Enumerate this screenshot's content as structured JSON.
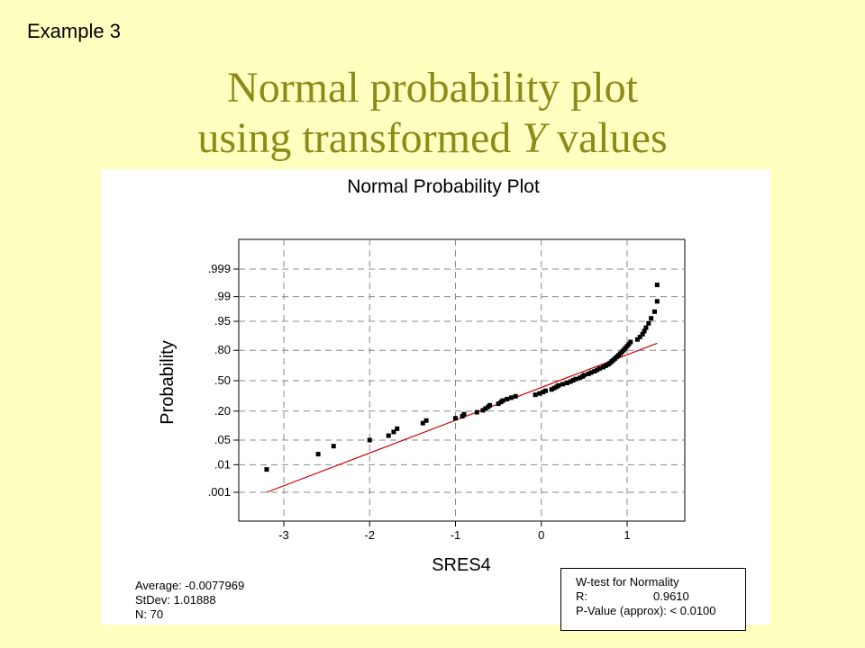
{
  "slide": {
    "example_label": "Example 3",
    "title_line1": "Normal probability plot",
    "title_line2_prefix": "using transformed ",
    "title_line2_italic": "Y",
    "title_line2_suffix": " values"
  },
  "stats": {
    "average": "Average: -0.0077969",
    "stdev": "StDev: 1.01888",
    "n": "N: 70"
  },
  "wtest": {
    "title": "W-test for Normality",
    "r_label": "R:",
    "r_value": "0.9610",
    "p_label": "P-Value (approx):",
    "p_value": "< 0.0100"
  },
  "colors": {
    "background": "#ffffc0",
    "title": "#8b8b1a",
    "fit_line": "#cc0000",
    "points": "#000000",
    "grid": "#888888"
  },
  "chart_data": {
    "type": "scatter",
    "title": "Normal Probability Plot",
    "xlabel": "SRES4",
    "ylabel": "Probability",
    "xlim": [
      -3.5,
      1.65
    ],
    "x_ticks": [
      -3,
      -2,
      -1,
      0,
      1
    ],
    "x_tick_labels": [
      "-3",
      "-2",
      "-1",
      "0",
      "1"
    ],
    "y_scale": "normal-probability",
    "y_ticks": [
      0.001,
      0.01,
      0.05,
      0.2,
      0.5,
      0.8,
      0.95,
      0.99,
      0.999
    ],
    "y_tick_labels": [
      ".001",
      ".01",
      ".05",
      ".20",
      ".50",
      ".80",
      ".95",
      ".99",
      ".999"
    ],
    "grid": true,
    "fit_line": {
      "x_start": -3.2,
      "p_start": 0.001,
      "x_end": 1.35,
      "p_end": 0.85
    },
    "points": [
      {
        "x": -3.2,
        "p": 0.007
      },
      {
        "x": -2.6,
        "p": 0.021
      },
      {
        "x": -2.42,
        "p": 0.035
      },
      {
        "x": -2.0,
        "p": 0.05
      },
      {
        "x": -1.78,
        "p": 0.064
      },
      {
        "x": -1.72,
        "p": 0.078
      },
      {
        "x": -1.68,
        "p": 0.092
      },
      {
        "x": -1.38,
        "p": 0.12
      },
      {
        "x": -1.34,
        "p": 0.135
      },
      {
        "x": -1.0,
        "p": 0.149
      },
      {
        "x": -0.92,
        "p": 0.163
      },
      {
        "x": -0.9,
        "p": 0.177
      },
      {
        "x": -0.75,
        "p": 0.191
      },
      {
        "x": -0.68,
        "p": 0.206
      },
      {
        "x": -0.65,
        "p": 0.22
      },
      {
        "x": -0.62,
        "p": 0.234
      },
      {
        "x": -0.6,
        "p": 0.248
      },
      {
        "x": -0.5,
        "p": 0.262
      },
      {
        "x": -0.47,
        "p": 0.277
      },
      {
        "x": -0.45,
        "p": 0.291
      },
      {
        "x": -0.4,
        "p": 0.305
      },
      {
        "x": -0.35,
        "p": 0.319
      },
      {
        "x": -0.3,
        "p": 0.333
      },
      {
        "x": -0.07,
        "p": 0.348
      },
      {
        "x": -0.02,
        "p": 0.362
      },
      {
        "x": 0.02,
        "p": 0.376
      },
      {
        "x": 0.05,
        "p": 0.39
      },
      {
        "x": 0.12,
        "p": 0.404
      },
      {
        "x": 0.15,
        "p": 0.419
      },
      {
        "x": 0.18,
        "p": 0.433
      },
      {
        "x": 0.2,
        "p": 0.447
      },
      {
        "x": 0.25,
        "p": 0.461
      },
      {
        "x": 0.3,
        "p": 0.475
      },
      {
        "x": 0.34,
        "p": 0.49
      },
      {
        "x": 0.37,
        "p": 0.504
      },
      {
        "x": 0.4,
        "p": 0.518
      },
      {
        "x": 0.45,
        "p": 0.532
      },
      {
        "x": 0.48,
        "p": 0.546
      },
      {
        "x": 0.5,
        "p": 0.561
      },
      {
        "x": 0.55,
        "p": 0.575
      },
      {
        "x": 0.58,
        "p": 0.589
      },
      {
        "x": 0.62,
        "p": 0.603
      },
      {
        "x": 0.65,
        "p": 0.617
      },
      {
        "x": 0.68,
        "p": 0.632
      },
      {
        "x": 0.72,
        "p": 0.646
      },
      {
        "x": 0.75,
        "p": 0.66
      },
      {
        "x": 0.78,
        "p": 0.674
      },
      {
        "x": 0.8,
        "p": 0.688
      },
      {
        "x": 0.82,
        "p": 0.703
      },
      {
        "x": 0.84,
        "p": 0.717
      },
      {
        "x": 0.86,
        "p": 0.731
      },
      {
        "x": 0.88,
        "p": 0.745
      },
      {
        "x": 0.9,
        "p": 0.759
      },
      {
        "x": 0.92,
        "p": 0.773
      },
      {
        "x": 0.94,
        "p": 0.788
      },
      {
        "x": 0.96,
        "p": 0.802
      },
      {
        "x": 0.98,
        "p": 0.816
      },
      {
        "x": 1.0,
        "p": 0.83
      },
      {
        "x": 1.02,
        "p": 0.844
      },
      {
        "x": 1.04,
        "p": 0.858
      },
      {
        "x": 1.12,
        "p": 0.873
      },
      {
        "x": 1.15,
        "p": 0.887
      },
      {
        "x": 1.18,
        "p": 0.901
      },
      {
        "x": 1.2,
        "p": 0.915
      },
      {
        "x": 1.22,
        "p": 0.929
      },
      {
        "x": 1.25,
        "p": 0.944
      },
      {
        "x": 1.28,
        "p": 0.958
      },
      {
        "x": 1.32,
        "p": 0.972
      },
      {
        "x": 1.35,
        "p": 0.986
      },
      {
        "x": 1.35,
        "p": 0.996
      }
    ]
  }
}
